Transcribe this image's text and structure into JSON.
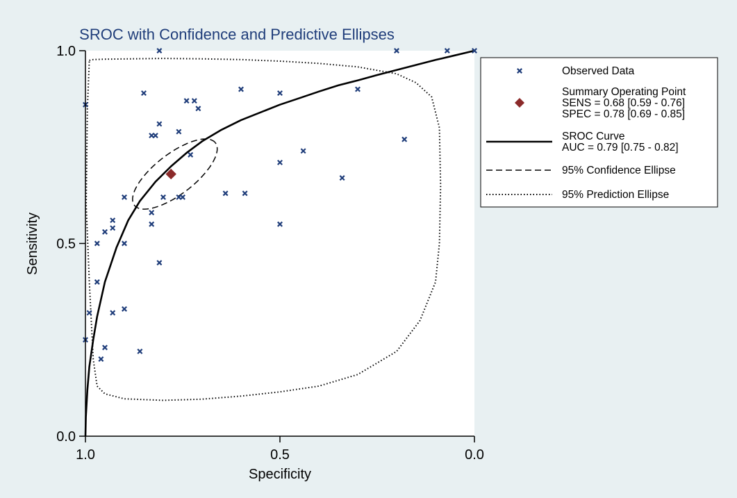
{
  "chart_data": {
    "type": "scatter",
    "title": "SROC with Confidence and Predictive Ellipses",
    "xlabel": "Specificity",
    "ylabel": "Sensitivity",
    "xlim": [
      1.0,
      0.0
    ],
    "ylim": [
      0.0,
      1.0
    ],
    "x_ticks": [
      "1.0",
      "0.5",
      "0.0"
    ],
    "y_ticks": [
      "0.0",
      "0.5",
      "1.0"
    ],
    "grid": false,
    "legend_position": "right",
    "colors": {
      "observed": "#1f3d7a",
      "summary": "#8b2a2a",
      "curve": "#000000",
      "background": "#e8f0f2",
      "plot_bg": "#ffffff",
      "title": "#1f3d7a"
    },
    "observed_data": {
      "name": "Observed Data",
      "specificity": [
        0.81,
        0.2,
        0.07,
        0.0,
        1.0,
        0.85,
        0.6,
        0.5,
        0.3,
        0.74,
        0.72,
        0.71,
        0.82,
        0.81,
        0.73,
        0.83,
        0.76,
        0.18,
        0.44,
        0.5,
        0.34,
        0.64,
        0.59,
        0.75,
        0.76,
        0.8,
        0.83,
        0.9,
        0.93,
        0.93,
        0.95,
        0.97,
        0.83,
        0.5,
        0.9,
        0.81,
        0.97,
        0.99,
        0.9,
        0.93,
        0.86,
        0.95,
        0.96,
        1.0
      ],
      "sensitivity": [
        1.0,
        1.0,
        1.0,
        1.0,
        0.86,
        0.89,
        0.9,
        0.89,
        0.9,
        0.87,
        0.87,
        0.85,
        0.78,
        0.81,
        0.73,
        0.78,
        0.79,
        0.77,
        0.74,
        0.71,
        0.67,
        0.63,
        0.63,
        0.62,
        0.62,
        0.62,
        0.58,
        0.62,
        0.56,
        0.54,
        0.53,
        0.5,
        0.55,
        0.55,
        0.5,
        0.45,
        0.4,
        0.32,
        0.33,
        0.32,
        0.22,
        0.23,
        0.2,
        0.25
      ]
    },
    "summary_point": {
      "specificity": 0.78,
      "sensitivity": 0.68
    },
    "sroc_curve": {
      "specificity": [
        1.0,
        0.999,
        0.995,
        0.99,
        0.98,
        0.97,
        0.95,
        0.92,
        0.89,
        0.86,
        0.82,
        0.78,
        0.74,
        0.7,
        0.65,
        0.6,
        0.55,
        0.5,
        0.45,
        0.4,
        0.35,
        0.3,
        0.25,
        0.2,
        0.15,
        0.1,
        0.05,
        0.0
      ],
      "sensitivity": [
        0.0,
        0.05,
        0.12,
        0.18,
        0.25,
        0.31,
        0.4,
        0.49,
        0.56,
        0.61,
        0.66,
        0.7,
        0.735,
        0.765,
        0.795,
        0.82,
        0.84,
        0.86,
        0.877,
        0.894,
        0.91,
        0.923,
        0.937,
        0.95,
        0.963,
        0.976,
        0.988,
        1.0
      ]
    },
    "confidence_ellipse": {
      "center_specificity": 0.77,
      "center_sensitivity": 0.68,
      "semi_axis_a": 0.132,
      "semi_axis_b": 0.052,
      "angle_deg": 38
    },
    "prediction_ellipse_outline": {
      "specificity": [
        0.99,
        0.98,
        0.95,
        0.88,
        0.8,
        0.7,
        0.6,
        0.5,
        0.4,
        0.3,
        0.2,
        0.15,
        0.11,
        0.09,
        0.087,
        0.09,
        0.1,
        0.14,
        0.2,
        0.3,
        0.4,
        0.5,
        0.6,
        0.7,
        0.8,
        0.9,
        0.95,
        0.97,
        0.98,
        0.99,
        0.998,
        0.995,
        0.99
      ],
      "sensitivity": [
        0.975,
        0.977,
        0.978,
        0.979,
        0.98,
        0.979,
        0.977,
        0.973,
        0.967,
        0.958,
        0.94,
        0.917,
        0.88,
        0.8,
        0.65,
        0.5,
        0.4,
        0.3,
        0.22,
        0.16,
        0.13,
        0.115,
        0.104,
        0.096,
        0.093,
        0.097,
        0.11,
        0.13,
        0.2,
        0.4,
        0.6,
        0.85,
        0.975
      ]
    },
    "legend": [
      {
        "key": "observed",
        "lines": [
          "Observed Data"
        ]
      },
      {
        "key": "summary",
        "lines": [
          "Summary Operating Point",
          "SENS = 0.68 [0.59 - 0.76]",
          "SPEC = 0.78 [0.69 - 0.85]"
        ]
      },
      {
        "key": "curve",
        "lines": [
          "SROC Curve",
          "AUC = 0.79 [0.75 - 0.82]"
        ]
      },
      {
        "key": "confidence",
        "lines": [
          "95% Confidence Ellipse"
        ]
      },
      {
        "key": "prediction",
        "lines": [
          "95% Prediction Ellipse"
        ]
      }
    ]
  }
}
